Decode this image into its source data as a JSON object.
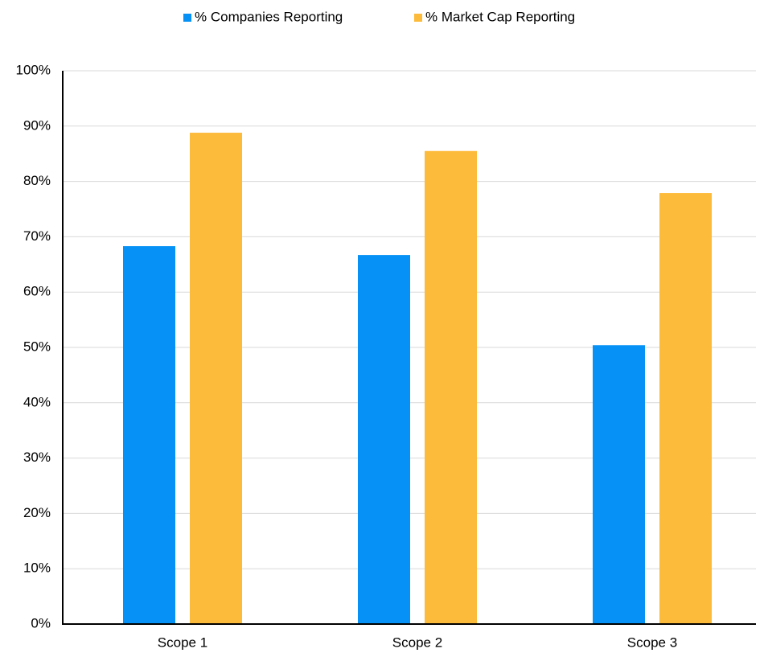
{
  "chart_data": {
    "type": "bar",
    "categories": [
      "Scope 1",
      "Scope 2",
      "Scope 3"
    ],
    "series": [
      {
        "name": "% Companies Reporting",
        "color": "#0591f5",
        "values": [
          68.3,
          66.7,
          50.4
        ]
      },
      {
        "name": "% Market Cap Reporting",
        "color": "#fdbb3b",
        "values": [
          88.8,
          85.5,
          77.9
        ]
      }
    ],
    "ylim": [
      0,
      100
    ],
    "yticks": [
      {
        "value": 0,
        "label": "0%"
      },
      {
        "value": 10,
        "label": "10%"
      },
      {
        "value": 20,
        "label": "20%"
      },
      {
        "value": 30,
        "label": "30%"
      },
      {
        "value": 40,
        "label": "40%"
      },
      {
        "value": 50,
        "label": "50%"
      },
      {
        "value": 60,
        "label": "60%"
      },
      {
        "value": 70,
        "label": "70%"
      },
      {
        "value": 80,
        "label": "80%"
      },
      {
        "value": 90,
        "label": "90%"
      },
      {
        "value": 100,
        "label": "100%"
      }
    ],
    "grid": true,
    "legend": "top"
  }
}
